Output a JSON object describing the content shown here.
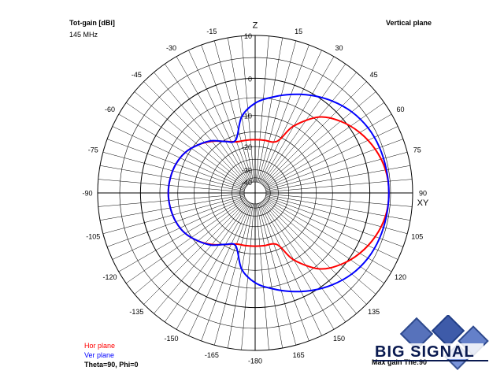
{
  "header": {
    "title": "Tot-gain [dBi]",
    "frequency": "145 MHz",
    "plane": "Vertical plane"
  },
  "footer": {
    "hor_label": "Hor plane",
    "ver_label": "Ver plane",
    "theta_phi": "Theta=90, Phi=0",
    "max_gain": "Max gain The:90"
  },
  "logo": {
    "text": "BIG SIGNAL"
  },
  "colors": {
    "hor": "#ff0000",
    "ver": "#0000ff",
    "grid": "#000000",
    "logo": "#0a2a7a"
  },
  "chart_data": {
    "type": "polar",
    "radial_axis": {
      "min": -40,
      "max": 10,
      "ticks": [
        10,
        0,
        -10,
        -20,
        -30,
        -40
      ],
      "ring_step_db": 5
    },
    "angle_axis": {
      "zero_direction": "top",
      "direction": "clockwise",
      "spoke_step_deg": 5,
      "tick_labels": [
        {
          "angle": 0,
          "text": "Z"
        },
        {
          "angle": 15,
          "text": "15"
        },
        {
          "angle": 30,
          "text": "30"
        },
        {
          "angle": 45,
          "text": "45"
        },
        {
          "angle": 60,
          "text": "60"
        },
        {
          "angle": 75,
          "text": "75"
        },
        {
          "angle": 90,
          "text": "90"
        },
        {
          "angle": 105,
          "text": "105"
        },
        {
          "angle": 120,
          "text": "120"
        },
        {
          "angle": 135,
          "text": "135"
        },
        {
          "angle": 150,
          "text": "150"
        },
        {
          "angle": 165,
          "text": "165"
        },
        {
          "angle": 180,
          "text": "-180"
        },
        {
          "angle": -165,
          "text": "-165"
        },
        {
          "angle": -150,
          "text": "-150"
        },
        {
          "angle": -135,
          "text": "-135"
        },
        {
          "angle": -120,
          "text": "-120"
        },
        {
          "angle": -105,
          "text": "-105"
        },
        {
          "angle": -90,
          "text": "-90"
        },
        {
          "angle": -75,
          "text": "-75"
        },
        {
          "angle": -60,
          "text": "-60"
        },
        {
          "angle": -45,
          "text": "-45"
        },
        {
          "angle": -30,
          "text": "-30"
        },
        {
          "angle": -15,
          "text": "-15"
        }
      ],
      "xy_label": "XY"
    },
    "series": [
      {
        "name": "Hor plane",
        "color": "#ff0000",
        "points": [
          [
            0,
            -17.6
          ],
          [
            10,
            -17.5
          ],
          [
            20,
            -17.3
          ],
          [
            25,
            -15.5
          ],
          [
            30,
            -10
          ],
          [
            40,
            -4
          ],
          [
            50,
            -0.8
          ],
          [
            60,
            1.5
          ],
          [
            70,
            3.2
          ],
          [
            80,
            4.3
          ],
          [
            90,
            4.6
          ],
          [
            100,
            4.3
          ],
          [
            110,
            3.2
          ],
          [
            120,
            1.5
          ],
          [
            130,
            -0.8
          ],
          [
            140,
            -4
          ],
          [
            150,
            -10
          ],
          [
            155,
            -15.5
          ],
          [
            160,
            -17.3
          ],
          [
            170,
            -17.5
          ],
          [
            180,
            -17.6
          ],
          [
            -170,
            -17.5
          ],
          [
            -160,
            -17.2
          ],
          [
            -150,
            -15.5
          ],
          [
            -140,
            -13
          ],
          [
            -130,
            -10.8
          ],
          [
            -120,
            -9
          ],
          [
            -110,
            -8
          ],
          [
            -100,
            -7.5
          ],
          [
            -90,
            -7.3
          ],
          [
            -80,
            -7.5
          ],
          [
            -70,
            -8
          ],
          [
            -60,
            -9
          ],
          [
            -50,
            -10.8
          ],
          [
            -40,
            -13
          ],
          [
            -30,
            -15.5
          ],
          [
            -20,
            -17.2
          ],
          [
            -10,
            -17.5
          ]
        ]
      },
      {
        "name": "Ver plane",
        "color": "#0000ff",
        "points": [
          [
            0,
            -6.5
          ],
          [
            10,
            -4.5
          ],
          [
            20,
            -2.5
          ],
          [
            30,
            -0.5
          ],
          [
            40,
            1.3
          ],
          [
            50,
            2.8
          ],
          [
            60,
            3.8
          ],
          [
            70,
            4.3
          ],
          [
            80,
            4.5
          ],
          [
            90,
            4.6
          ],
          [
            100,
            4.5
          ],
          [
            110,
            4.3
          ],
          [
            120,
            3.8
          ],
          [
            130,
            2.8
          ],
          [
            140,
            1.3
          ],
          [
            150,
            -0.5
          ],
          [
            160,
            -2.5
          ],
          [
            170,
            -4.5
          ],
          [
            180,
            -6.5
          ],
          [
            -170,
            -10
          ],
          [
            -160,
            -16.5
          ],
          [
            -150,
            -15.5
          ],
          [
            -140,
            -12.8
          ],
          [
            -130,
            -10.8
          ],
          [
            -120,
            -9
          ],
          [
            -110,
            -8
          ],
          [
            -100,
            -7.5
          ],
          [
            -90,
            -7.3
          ],
          [
            -80,
            -7.5
          ],
          [
            -70,
            -8
          ],
          [
            -60,
            -9
          ],
          [
            -50,
            -10.8
          ],
          [
            -40,
            -12.8
          ],
          [
            -30,
            -15.5
          ],
          [
            -20,
            -16.5
          ],
          [
            -10,
            -10
          ]
        ]
      }
    ]
  }
}
